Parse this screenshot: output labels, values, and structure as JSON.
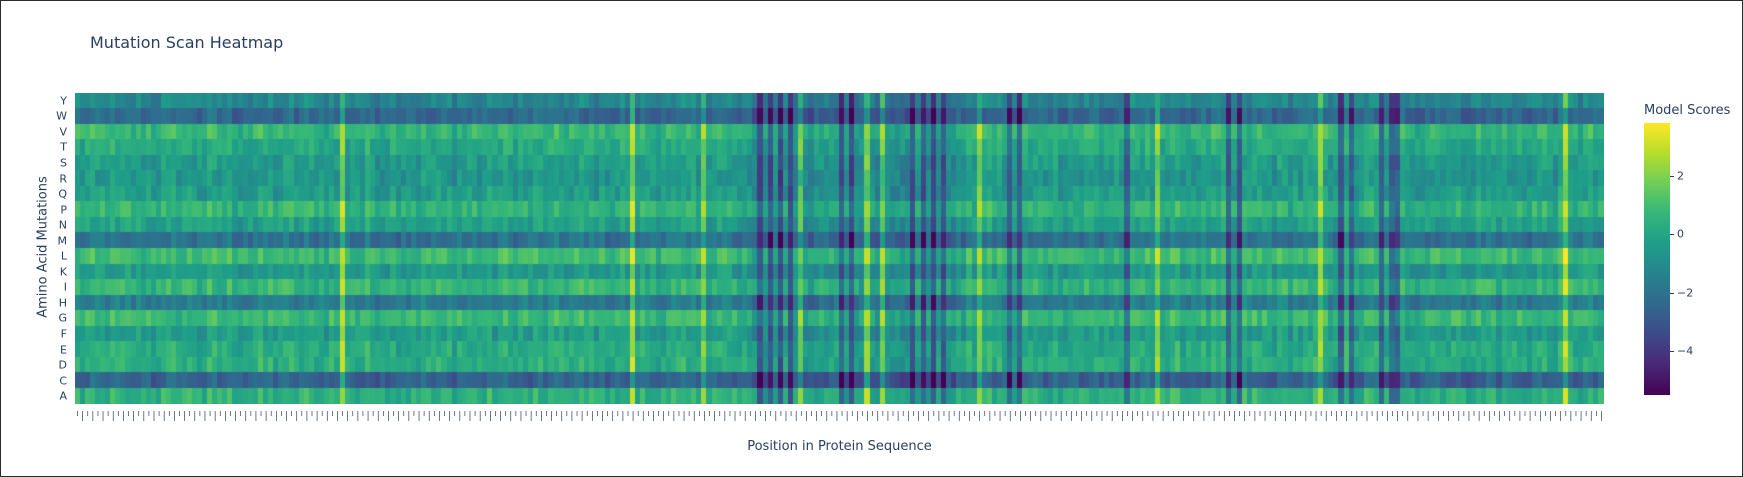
{
  "chart_data": {
    "type": "heatmap",
    "title": "Mutation Scan Heatmap",
    "xlabel": "Position in Protein Sequence",
    "ylabel": "Amino Acid Mutations",
    "rows_top_to_bottom": [
      "Y",
      "W",
      "V",
      "T",
      "S",
      "R",
      "Q",
      "P",
      "N",
      "M",
      "L",
      "K",
      "I",
      "H",
      "G",
      "F",
      "E",
      "D",
      "C",
      "A"
    ],
    "num_positions": 300,
    "colorscale": "Viridis",
    "zmin": -5.5,
    "zmax": 3.8,
    "colorbar": {
      "title": "Model Scores",
      "ticks": [
        2,
        0,
        -2,
        -4
      ],
      "tick_labels": [
        "2",
        "0",
        "−2",
        "−4"
      ]
    },
    "row_baseline": {
      "Y": -1.2,
      "W": -2.4,
      "V": 0.6,
      "T": 0.1,
      "S": -0.4,
      "R": -0.6,
      "Q": -0.4,
      "P": 0.5,
      "N": -0.3,
      "M": -2.0,
      "L": 0.8,
      "K": -0.5,
      "I": 0.6,
      "H": -1.6,
      "G": 0.7,
      "F": -0.4,
      "E": 0.2,
      "D": 0.3,
      "C": -2.6,
      "A": 0.4
    },
    "low_columns": [
      134,
      136,
      138,
      140,
      150,
      152,
      164,
      166,
      168,
      170,
      183,
      185,
      206,
      226,
      228,
      248,
      250,
      256,
      258,
      259
    ],
    "high_columns": [
      52,
      109,
      123,
      142,
      155,
      158,
      177,
      212,
      244,
      292
    ]
  },
  "colors": {
    "text": "#2a3f5f",
    "viridis": [
      "#440154",
      "#482878",
      "#3e4989",
      "#31688e",
      "#26828e",
      "#1f9e89",
      "#35b779",
      "#6ece58",
      "#b5de2b",
      "#fde725"
    ]
  }
}
